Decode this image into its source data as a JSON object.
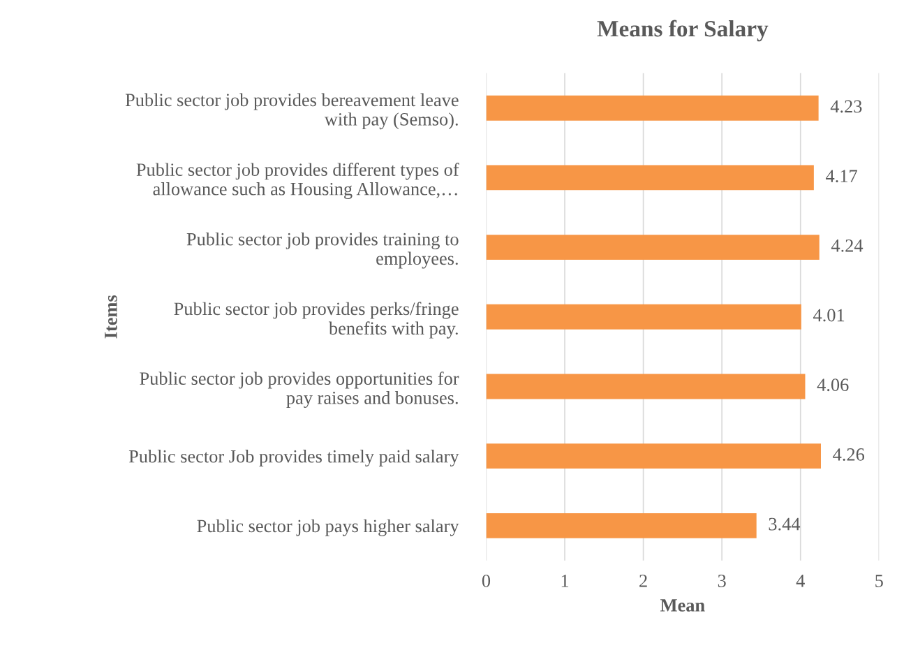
{
  "chart_data": {
    "type": "bar",
    "orientation": "horizontal",
    "title": "Means for Salary",
    "xlabel": "Mean",
    "ylabel": "Items",
    "categories": [
      "Public sector job provides bereavement leave\nwith pay (Semso).",
      "Public sector job provides different types of\nallowance such as Housing Allowance,…",
      "Public sector job provides training to\nemployees.",
      "Public sector job provides perks/fringe\nbenefits with pay.",
      "Public sector job provides opportunities for\npay raises and bonuses.",
      "Public sector Job provides timely paid salary",
      "Public sector job pays higher salary"
    ],
    "values": [
      4.23,
      4.17,
      4.24,
      4.01,
      4.06,
      4.26,
      3.44
    ],
    "color": "#f79646",
    "xlim": [
      0,
      5
    ],
    "xticks": [
      0,
      1,
      2,
      3,
      4,
      5
    ],
    "grid": "x",
    "data_labels": true,
    "legend": false
  }
}
